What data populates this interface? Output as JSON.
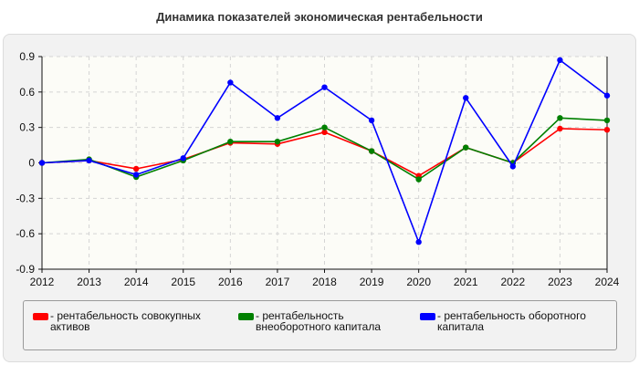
{
  "chart_data": {
    "type": "line",
    "title": "Динамика показателей экономическая рентабельности",
    "x": [
      "2012",
      "2013",
      "2014",
      "2015",
      "2016",
      "2017",
      "2018",
      "2019",
      "2020",
      "2021",
      "2022",
      "2023",
      "2024"
    ],
    "ylim": [
      -0.9,
      0.9
    ],
    "yticks": [
      "0.9",
      "0.6",
      "0.3",
      "0",
      "-0.3",
      "-0.6",
      "-0.9"
    ],
    "ytick_values": [
      0.9,
      0.6,
      0.3,
      0,
      -0.3,
      -0.6,
      -0.9
    ],
    "grid": true,
    "legend_position": "bottom",
    "series": [
      {
        "name": "- рентабельность совокупных\nактивов",
        "color": "#ff0000",
        "values": [
          0.0,
          0.02,
          -0.05,
          0.03,
          0.17,
          0.16,
          0.26,
          0.1,
          -0.11,
          0.13,
          0.0,
          0.29,
          0.28
        ]
      },
      {
        "name": "- рентабельность\nвнеоборотного капитала",
        "color": "#008000",
        "values": [
          0.0,
          0.03,
          -0.12,
          0.02,
          0.18,
          0.18,
          0.3,
          0.1,
          -0.14,
          0.13,
          0.0,
          0.38,
          0.36
        ]
      },
      {
        "name": "- рентабельность оборотного\nкапитала",
        "color": "#0000ff",
        "values": [
          0.0,
          0.02,
          -0.1,
          0.04,
          0.68,
          0.38,
          0.64,
          0.36,
          -0.67,
          0.55,
          -0.03,
          0.87,
          0.57
        ]
      }
    ]
  }
}
